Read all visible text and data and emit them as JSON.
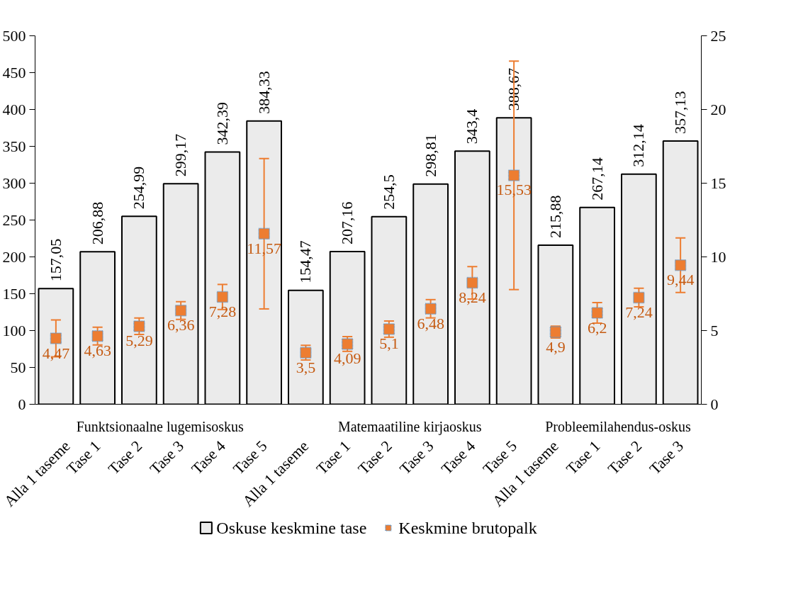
{
  "chart_data": {
    "type": "bar",
    "categories": [
      "Alla 1 taseme",
      "Tase 1",
      "Tase 2",
      "Tase 3",
      "Tase 4",
      "Tase 5",
      "Alla 1 taseme",
      "Tase 1",
      "Tase 2",
      "Tase 3",
      "Tase 4",
      "Tase 5",
      "Alla 1 taseme",
      "Tase 1",
      "Tase 2",
      "Tase 3"
    ],
    "series": [
      {
        "name": "Oskuse keskmine tase",
        "color": "#ebebeb",
        "values": [
          157.05,
          206.88,
          254.99,
          299.17,
          342.39,
          384.33,
          154.47,
          207.16,
          254.5,
          298.81,
          343.4,
          388.67,
          215.88,
          267.14,
          312.14,
          357.13
        ],
        "value_labels": [
          "157,05",
          "206,88",
          "254,99",
          "299,17",
          "342,39",
          "384,33",
          "154,47",
          "207,16",
          "254,5",
          "298,81",
          "343,4",
          "388,67",
          "215,88",
          "267,14",
          "312,14",
          "357,13"
        ]
      },
      {
        "name": "Keskmine brutopalk",
        "type": "scatter",
        "axis": "y2",
        "color": "#ed7d31",
        "values": [
          4.47,
          4.63,
          5.29,
          6.36,
          7.28,
          11.57,
          3.5,
          4.09,
          5.1,
          6.48,
          8.24,
          15.53,
          4.9,
          6.2,
          7.24,
          9.44
        ],
        "value_labels": [
          "4,47",
          "4,63",
          "5,29",
          "6,36",
          "7,28",
          "11,57",
          "3,5",
          "4,09",
          "5,1",
          "6,48",
          "8,24",
          "15,53",
          "4,9",
          "6,2",
          "7,24",
          "9,44"
        ],
        "errors": [
          1.25,
          0.6,
          0.56,
          0.6,
          0.85,
          5.1,
          0.5,
          0.5,
          0.55,
          0.62,
          1.1,
          7.75,
          0.4,
          0.7,
          0.63,
          1.85
        ]
      }
    ],
    "annotations": [
      "Funktsionaalne lugemisoskus",
      "Matemaatiline kirjaoskus",
      "Probleemilahendus-oskus"
    ],
    "ylim": [
      0,
      500
    ],
    "yticks": [
      0,
      50,
      100,
      150,
      200,
      250,
      300,
      350,
      400,
      450,
      500
    ],
    "y2lim": [
      0,
      25
    ],
    "y2ticks": [
      0,
      5,
      10,
      15,
      20,
      25
    ],
    "grid": false,
    "legend": "bottom",
    "marker": "square"
  }
}
